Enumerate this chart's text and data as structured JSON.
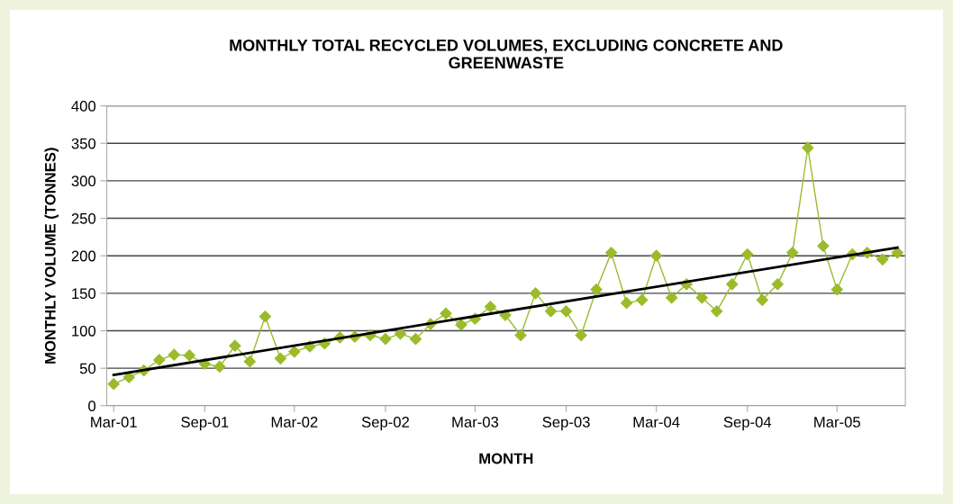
{
  "chart_data": {
    "type": "line",
    "title": "MONTHLY TOTAL RECYCLED VOLUMES, EXCLUDING CONCRETE AND\nGREENWASTE",
    "xlabel": "MONTH",
    "ylabel": "MONTHLY VOLUME (TONNES)",
    "x": [
      "2001-03",
      "2001-04",
      "2001-05",
      "2001-06",
      "2001-07",
      "2001-08",
      "2001-09",
      "2001-10",
      "2001-11",
      "2001-12",
      "2002-01",
      "2002-02",
      "2002-03",
      "2002-04",
      "2002-05",
      "2002-06",
      "2002-07",
      "2002-08",
      "2002-09",
      "2002-10",
      "2002-11",
      "2002-12",
      "2003-01",
      "2003-02",
      "2003-03",
      "2003-04",
      "2003-05",
      "2003-06",
      "2003-07",
      "2003-08",
      "2003-09",
      "2003-10",
      "2003-11",
      "2003-12",
      "2004-01",
      "2004-02",
      "2004-03",
      "2004-04",
      "2004-05",
      "2004-06",
      "2004-07",
      "2004-08",
      "2004-09",
      "2004-10",
      "2004-11",
      "2004-12",
      "2005-01",
      "2005-02",
      "2005-03",
      "2005-04",
      "2005-05",
      "2005-06",
      "2005-07"
    ],
    "series": [
      {
        "color": "#9bbb2b",
        "marker": "diamond",
        "values": [
          29,
          38,
          47,
          61,
          68,
          67,
          56,
          52,
          80,
          59,
          119,
          63,
          72,
          79,
          83,
          91,
          92,
          94,
          89,
          96,
          89,
          109,
          123,
          108,
          116,
          132,
          121,
          94,
          150,
          126,
          126,
          94,
          155,
          204,
          137,
          141,
          200,
          144,
          162,
          144,
          126,
          162,
          202,
          141,
          162,
          204,
          344,
          213,
          155,
          202,
          204,
          195,
          204
        ]
      },
      {
        "type": "line",
        "color": "#000000",
        "marker": "none",
        "x": [
          "2001-03",
          "2005-07"
        ],
        "values": [
          41,
          211
        ]
      }
    ],
    "xlim": [
      "2001-02-15",
      "2005-07-17"
    ],
    "xticks": [
      {
        "value": "2001-03",
        "label": "Mar-01"
      },
      {
        "value": "2001-09",
        "label": "Sep-01"
      },
      {
        "value": "2002-03",
        "label": "Mar-02"
      },
      {
        "value": "2002-09",
        "label": "Sep-02"
      },
      {
        "value": "2003-03",
        "label": "Mar-03"
      },
      {
        "value": "2003-09",
        "label": "Sep-03"
      },
      {
        "value": "2004-03",
        "label": "Mar-04"
      },
      {
        "value": "2004-09",
        "label": "Sep-04"
      },
      {
        "value": "2005-03",
        "label": "Mar-05"
      }
    ],
    "ylim": [
      0,
      400
    ],
    "yticks": [
      0,
      50,
      100,
      150,
      200,
      250,
      300,
      350,
      400
    ],
    "grid": "y",
    "legend": false
  }
}
